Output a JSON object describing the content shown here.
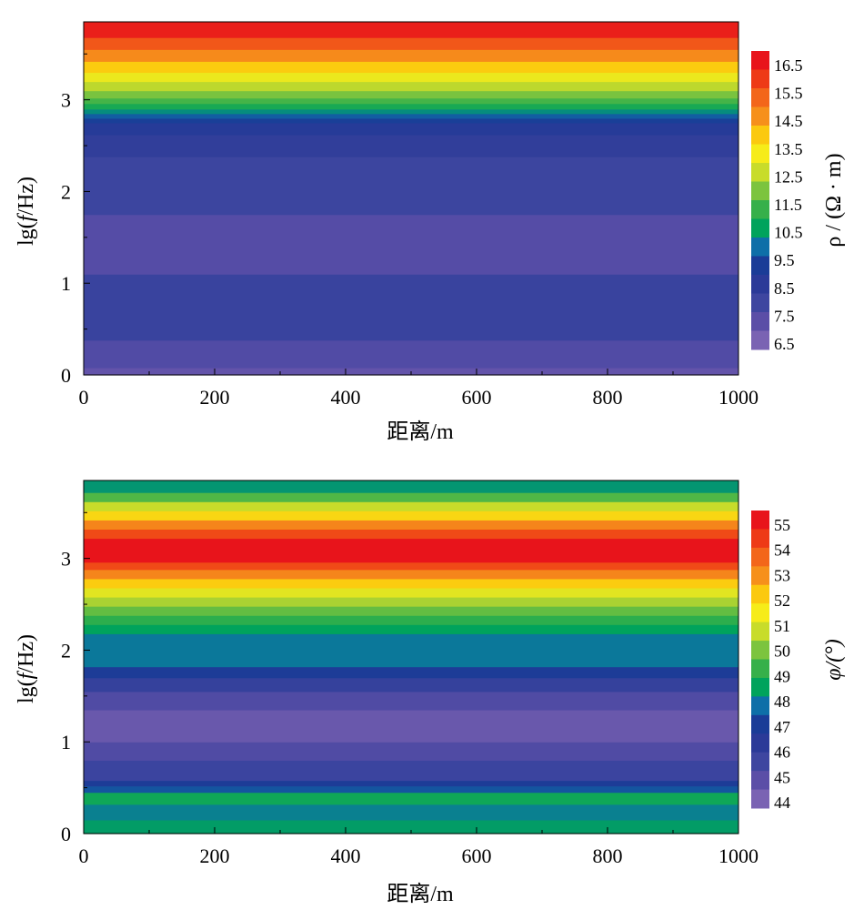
{
  "chart_data": [
    {
      "type": "heatmap",
      "id": "resistivity",
      "xlabel": "距离/m",
      "ylabel_prefix": "lg(",
      "ylabel_var": "f",
      "ylabel_suffix": "/Hz)",
      "colorbar_label": "ρ / (Ω · m)",
      "xlim": [
        0,
        1000
      ],
      "ylim": [
        0,
        3.85
      ],
      "xticks": [
        0,
        200,
        400,
        600,
        800,
        1000
      ],
      "yticks": [
        0,
        1,
        2,
        3
      ],
      "colorbar_ticks": [
        "16.5",
        "15.5",
        "14.5",
        "13.5",
        "12.5",
        "11.5",
        "10.5",
        "9.5",
        "8.5",
        "7.5",
        "6.5"
      ],
      "colorbar_colors": [
        "#e8141b",
        "#ee3a16",
        "#f3661a",
        "#f6901b",
        "#fbc90f",
        "#f6ec19",
        "#c8dc2a",
        "#7cc43e",
        "#36b04a",
        "#00a35c",
        "#0e6fa8",
        "#1a3c97",
        "#2b3a98",
        "#3e46a0",
        "#5b4ea7",
        "#7a63b3"
      ],
      "bands": [
        {
          "y0": 0.0,
          "y1": 0.08,
          "value": 7.0
        },
        {
          "y0": 0.08,
          "y1": 0.38,
          "value": 7.4
        },
        {
          "y0": 0.38,
          "y1": 1.1,
          "value": 8.0
        },
        {
          "y0": 1.1,
          "y1": 1.75,
          "value": 7.3
        },
        {
          "y0": 1.75,
          "y1": 2.38,
          "value": 7.9
        },
        {
          "y0": 2.38,
          "y1": 2.62,
          "value": 8.3
        },
        {
          "y0": 2.62,
          "y1": 2.75,
          "value": 8.7
        },
        {
          "y0": 2.75,
          "y1": 2.8,
          "value": 9.2
        },
        {
          "y0": 2.8,
          "y1": 2.85,
          "value": 9.6
        },
        {
          "y0": 2.85,
          "y1": 2.9,
          "value": 10.2
        },
        {
          "y0": 2.9,
          "y1": 2.96,
          "value": 10.8
        },
        {
          "y0": 2.96,
          "y1": 3.02,
          "value": 11.3
        },
        {
          "y0": 3.02,
          "y1": 3.1,
          "value": 11.8
        },
        {
          "y0": 3.1,
          "y1": 3.2,
          "value": 12.4
        },
        {
          "y0": 3.2,
          "y1": 3.3,
          "value": 13.0
        },
        {
          "y0": 3.3,
          "y1": 3.42,
          "value": 13.8
        },
        {
          "y0": 3.42,
          "y1": 3.55,
          "value": 14.6
        },
        {
          "y0": 3.55,
          "y1": 3.68,
          "value": 15.4
        },
        {
          "y0": 3.68,
          "y1": 3.85,
          "value": 16.3
        }
      ]
    },
    {
      "type": "heatmap",
      "id": "phase",
      "xlabel": "距离/m",
      "ylabel_prefix": "lg(",
      "ylabel_var": "f",
      "ylabel_suffix": "/Hz)",
      "colorbar_label": "φ/(°)",
      "xlim": [
        0,
        1000
      ],
      "ylim": [
        0,
        3.85
      ],
      "xticks": [
        0,
        200,
        400,
        600,
        800,
        1000
      ],
      "yticks": [
        0,
        1,
        2,
        3
      ],
      "colorbar_ticks": [
        "55",
        "54",
        "53",
        "52",
        "51",
        "50",
        "49",
        "48",
        "47",
        "46",
        "45",
        "44"
      ],
      "colorbar_colors": [
        "#e8141b",
        "#ee3a16",
        "#f3661a",
        "#f6901b",
        "#fbc90f",
        "#f6ec19",
        "#c8dc2a",
        "#7cc43e",
        "#36b04a",
        "#00a35c",
        "#0e6fa8",
        "#1a3c97",
        "#2b3a98",
        "#3e46a0",
        "#5b4ea7",
        "#7a63b3"
      ],
      "bands": [
        {
          "y0": 0.0,
          "y1": 0.15,
          "value": 48.3
        },
        {
          "y0": 0.15,
          "y1": 0.32,
          "value": 47.9
        },
        {
          "y0": 0.32,
          "y1": 0.45,
          "value": 48.6
        },
        {
          "y0": 0.45,
          "y1": 0.52,
          "value": 47.3
        },
        {
          "y0": 0.52,
          "y1": 0.58,
          "value": 46.8
        },
        {
          "y0": 0.58,
          "y1": 0.8,
          "value": 45.6
        },
        {
          "y0": 0.8,
          "y1": 1.0,
          "value": 45.0
        },
        {
          "y0": 1.0,
          "y1": 1.35,
          "value": 44.4
        },
        {
          "y0": 1.35,
          "y1": 1.55,
          "value": 45.0
        },
        {
          "y0": 1.55,
          "y1": 1.7,
          "value": 45.8
        },
        {
          "y0": 1.7,
          "y1": 1.82,
          "value": 46.8
        },
        {
          "y0": 1.82,
          "y1": 2.18,
          "value": 47.8
        },
        {
          "y0": 2.18,
          "y1": 2.28,
          "value": 48.4
        },
        {
          "y0": 2.28,
          "y1": 2.38,
          "value": 49.0
        },
        {
          "y0": 2.38,
          "y1": 2.48,
          "value": 49.6
        },
        {
          "y0": 2.48,
          "y1": 2.58,
          "value": 50.3
        },
        {
          "y0": 2.58,
          "y1": 2.68,
          "value": 51.0
        },
        {
          "y0": 2.68,
          "y1": 2.78,
          "value": 52.0
        },
        {
          "y0": 2.78,
          "y1": 2.88,
          "value": 53.0
        },
        {
          "y0": 2.88,
          "y1": 2.96,
          "value": 54.0
        },
        {
          "y0": 2.96,
          "y1": 3.22,
          "value": 55.0
        },
        {
          "y0": 3.22,
          "y1": 3.32,
          "value": 54.0
        },
        {
          "y0": 3.32,
          "y1": 3.42,
          "value": 53.0
        },
        {
          "y0": 3.42,
          "y1": 3.52,
          "value": 51.8
        },
        {
          "y0": 3.52,
          "y1": 3.62,
          "value": 50.6
        },
        {
          "y0": 3.62,
          "y1": 3.72,
          "value": 49.4
        },
        {
          "y0": 3.72,
          "y1": 3.85,
          "value": 48.2
        }
      ]
    }
  ]
}
